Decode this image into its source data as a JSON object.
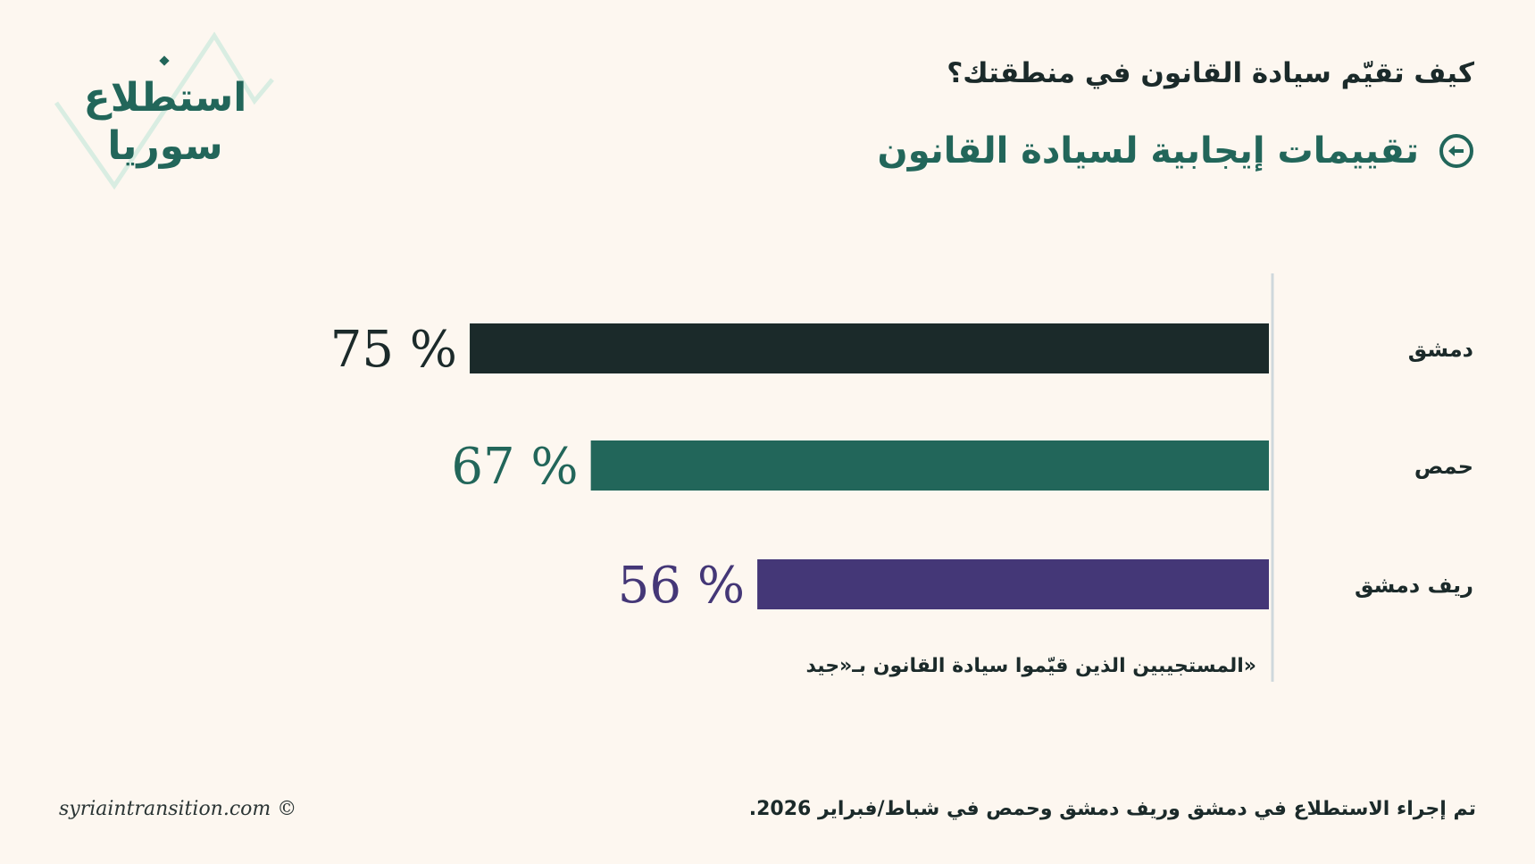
{
  "logo": {
    "line1": "استطلاع",
    "line2": "سوريا",
    "line_color": "#d9ede2",
    "text_color": "#22665a"
  },
  "header": {
    "question": "كيف تقيّم سيادة القانون في منطقتك؟",
    "subtitle": "تقييمات إيجابية لسيادة القانون",
    "subtitle_icon": "arrow-left-circle-icon"
  },
  "chart_data": {
    "type": "bar",
    "orientation": "horizontal",
    "title": "تقييمات إيجابية لسيادة القانون",
    "categories": [
      "دمشق",
      "حمص",
      "ريف دمشق"
    ],
    "values": [
      75,
      67,
      56
    ],
    "value_labels": [
      "75 %",
      "67 %",
      "56 %"
    ],
    "colors": [
      "#1b2a2a",
      "#22665a",
      "#443777"
    ],
    "unit": "%",
    "note": "«المستجيبين الذين قيّموا سيادة القانون بـ«جيد",
    "grid": false
  },
  "footer": {
    "credit": "syriaintransition.com ©",
    "source": "تم إجراء الاستطلاع في دمشق وريف دمشق وحمص في شباط/فبراير 2026."
  }
}
